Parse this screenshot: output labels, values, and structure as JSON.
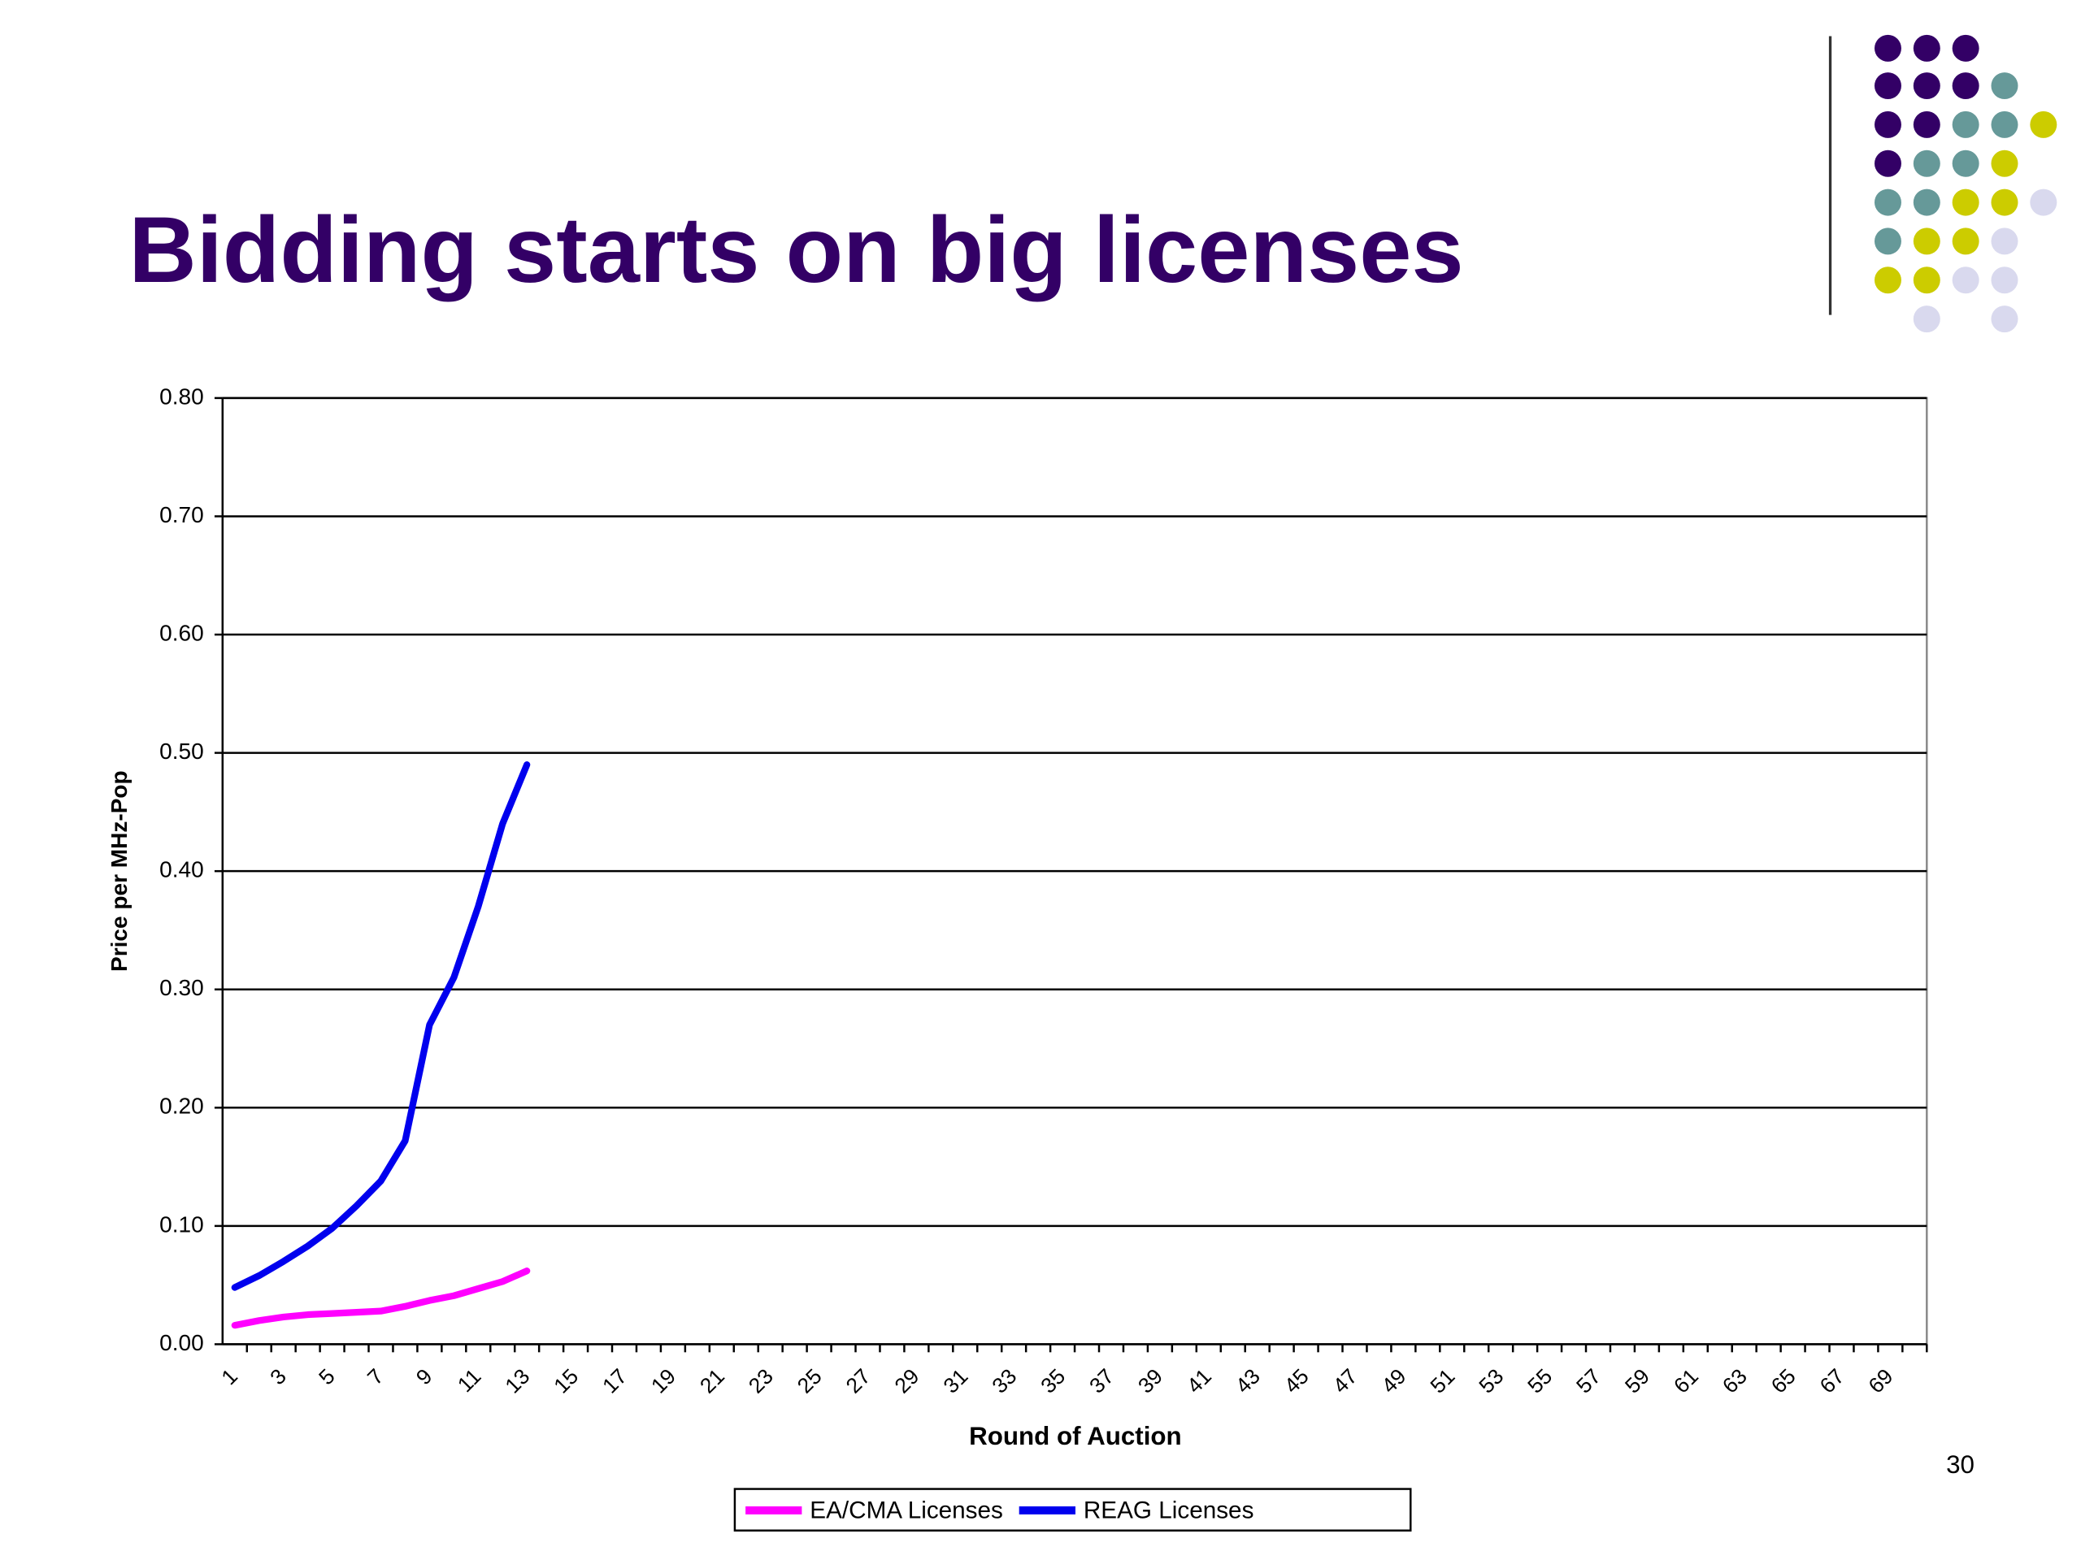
{
  "chart_data": {
    "type": "line",
    "title": "Bidding starts on big licenses",
    "page_number": "30",
    "x_label": "Round of Auction",
    "y_label": "Price per MHz-Pop",
    "categories": [
      1,
      null,
      3,
      null,
      5,
      null,
      7,
      null,
      9,
      null,
      11,
      null,
      13,
      null,
      15,
      null,
      17,
      null,
      19,
      null,
      21,
      null,
      23,
      null,
      25,
      null,
      27,
      null,
      29,
      null,
      31,
      null,
      33,
      null,
      35,
      null,
      37,
      null,
      39,
      null,
      41,
      null,
      43,
      null,
      45,
      null,
      47,
      null,
      49,
      null,
      51,
      null,
      53,
      null,
      55,
      null,
      57,
      null,
      59,
      null,
      61,
      null,
      63,
      null,
      65,
      null,
      67,
      null,
      69,
      null
    ],
    "series": [
      {
        "name": "EA/CMA Licenses",
        "color": "#ff00ff",
        "values": [
          0.016,
          0.02,
          0.023,
          0.025,
          0.026,
          0.027,
          0.028,
          0.032,
          0.037,
          0.041,
          0.047,
          0.053,
          0.062,
          null,
          null,
          null,
          null,
          null,
          null,
          null,
          null,
          null,
          null,
          null,
          null,
          null,
          null,
          null,
          null,
          null,
          null,
          null,
          null,
          null,
          null,
          null,
          null,
          null,
          null,
          null,
          null,
          null,
          null,
          null,
          null,
          null,
          null,
          null,
          null,
          null,
          null,
          null,
          null,
          null,
          null,
          null,
          null,
          null,
          null,
          null,
          null,
          null,
          null,
          null,
          null,
          null,
          null,
          null,
          null,
          null
        ]
      },
      {
        "name": "REAG Licenses",
        "color": "#0000ee",
        "values": [
          0.048,
          0.058,
          0.07,
          0.083,
          0.098,
          0.117,
          0.138,
          0.172,
          0.27,
          0.31,
          0.37,
          0.44,
          0.49,
          null,
          null,
          null,
          null,
          null,
          null,
          null,
          null,
          null,
          null,
          null,
          null,
          null,
          null,
          null,
          null,
          null,
          null,
          null,
          null,
          null,
          null,
          null,
          null,
          null,
          null,
          null,
          null,
          null,
          null,
          null,
          null,
          null,
          null,
          null,
          null,
          null,
          null,
          null,
          null,
          null,
          null,
          null,
          null,
          null,
          null,
          null,
          null,
          null,
          null,
          null,
          null,
          null,
          null,
          null,
          null,
          null
        ]
      }
    ],
    "ylim": [
      0,
      0.8
    ],
    "yticks": [
      {
        "value": 0,
        "label": "0.00"
      },
      {
        "value": 0.1,
        "label": "0.10"
      },
      {
        "value": 0.2,
        "label": "0.20"
      },
      {
        "value": 0.3,
        "label": "0.30"
      },
      {
        "value": 0.4,
        "label": "0.40"
      },
      {
        "value": 0.5,
        "label": "0.50"
      },
      {
        "value": 0.6,
        "label": "0.60"
      },
      {
        "value": 0.7,
        "label": "0.70"
      },
      {
        "value": 0.8,
        "label": "0.80"
      }
    ],
    "grid": true,
    "legend": "bottom"
  }
}
